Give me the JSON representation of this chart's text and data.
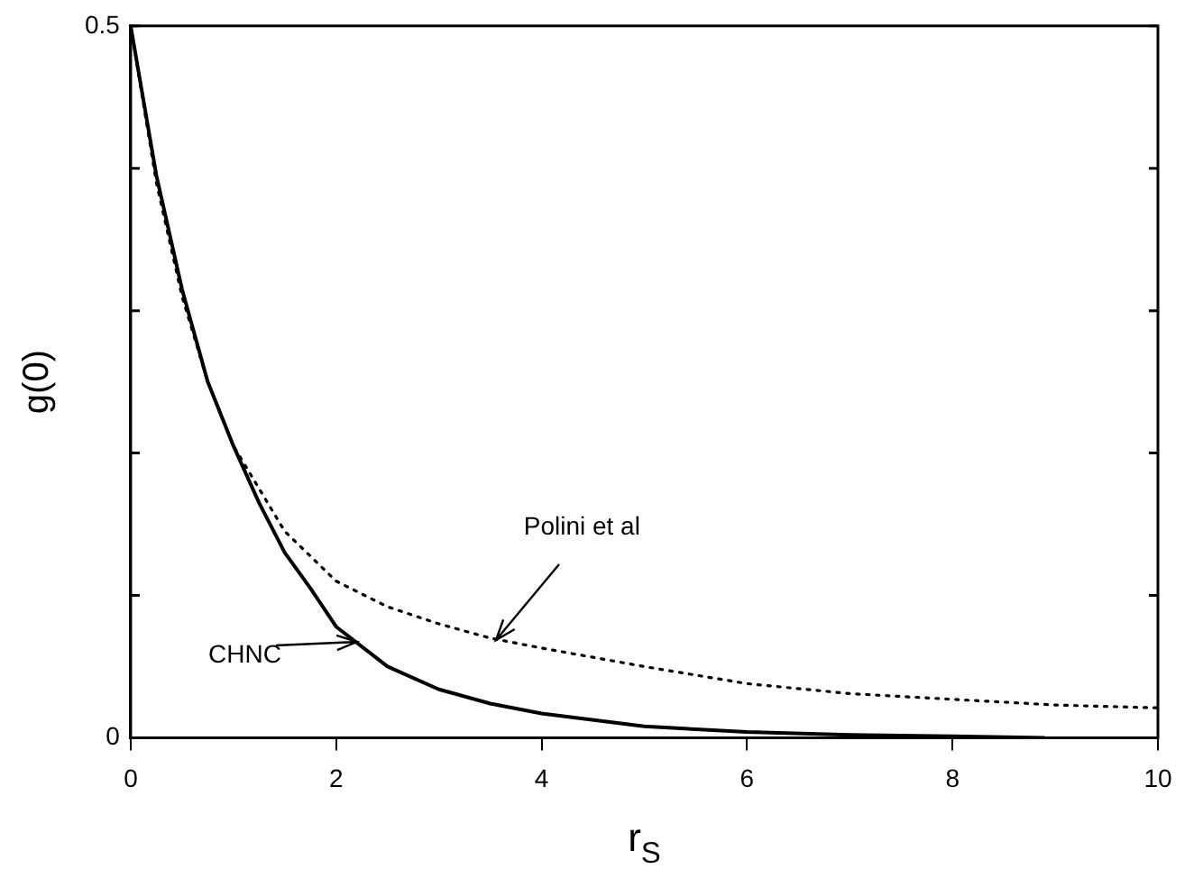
{
  "chart_data": {
    "type": "line",
    "xlabel": "r$_{S}$",
    "ylabel": "g(0)",
    "xlim": [
      0,
      10
    ],
    "xticks": [
      0,
      2,
      4,
      6,
      8,
      10
    ],
    "ylim": [
      0,
      0.5
    ],
    "yticks": [
      0,
      {
        "value": 0.1,
        "label": null
      },
      {
        "value": 0.2,
        "label": null
      },
      {
        "value": 0.3,
        "label": null
      },
      {
        "value": 0.4,
        "label": null
      },
      0.5
    ],
    "grid": false,
    "legend": false,
    "marker": "none",
    "annotations": [
      {
        "text": "CHNC",
        "x": 2.2,
        "y": 0.068
      },
      {
        "text": "Polini et al",
        "x": 3.55,
        "y": 0.069
      }
    ],
    "series": [
      {
        "color": "#000000",
        "line_style": "solid",
        "x": [
          0,
          0.25,
          0.5,
          0.75,
          1,
          1.25,
          1.5,
          1.75,
          2,
          2.5,
          3,
          3.5,
          4,
          5,
          6,
          7,
          8,
          8.9
        ],
        "values": [
          0.5,
          0.395,
          0.315,
          0.25,
          0.205,
          0.165,
          0.13,
          0.105,
          0.078,
          0.05,
          0.034,
          0.024,
          0.017,
          0.008,
          0.004,
          0.002,
          0.001,
          0
        ]
      },
      {
        "color": "#000000",
        "line_style": "dotted",
        "x": [
          0,
          0.25,
          0.5,
          0.75,
          1,
          1.5,
          2,
          2.5,
          3,
          3.5,
          4,
          5,
          6,
          7,
          8,
          9,
          10
        ],
        "values": [
          0.5,
          0.39,
          0.31,
          0.25,
          0.205,
          0.145,
          0.11,
          0.092,
          0.08,
          0.07,
          0.063,
          0.05,
          0.038,
          0.031,
          0.027,
          0.023,
          0.021
        ]
      }
    ]
  }
}
